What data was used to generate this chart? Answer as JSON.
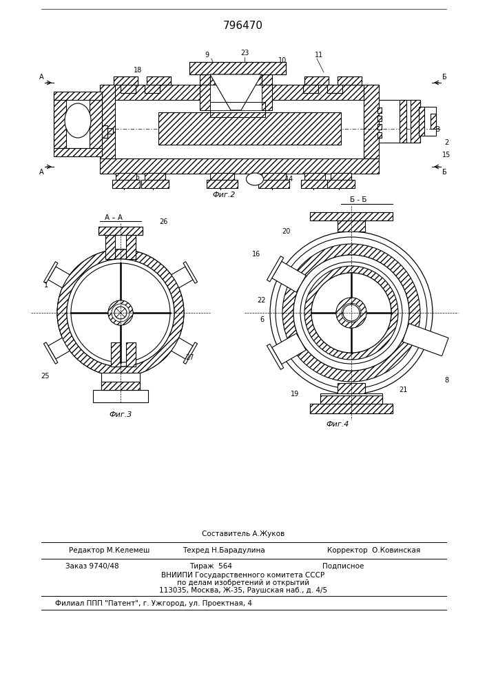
{
  "title": "796470",
  "background_color": "#ffffff",
  "fig2_caption": "Фиг.2",
  "fig3_caption": "Фиг.3",
  "fig4_caption": "Фиг.4",
  "bb_label": "Б - Б",
  "footer_line1": "Составитель А.Жуков",
  "footer_line2_left": "Редактор М.Келемеш",
  "footer_line2_mid": "Техред Н.Барадулина",
  "footer_line2_right": "Корректор  О.Ковинская",
  "footer_line3_left": "Заказ 9740/48",
  "footer_line3_mid": "Тираж  564",
  "footer_line3_right": "Подписное",
  "footer_line4": "ВНИИПИ Государственного комитета СССР",
  "footer_line5": "по делам изобретений и открытий",
  "footer_line6": "113035, Москва, Ж-35, Раушская наб., д. 4/5",
  "footer_line7": "Филиал ППП \"Патент\", г. Ужгород, ул. Проектная, 4",
  "line_color": "#000000",
  "line_width": 0.8
}
